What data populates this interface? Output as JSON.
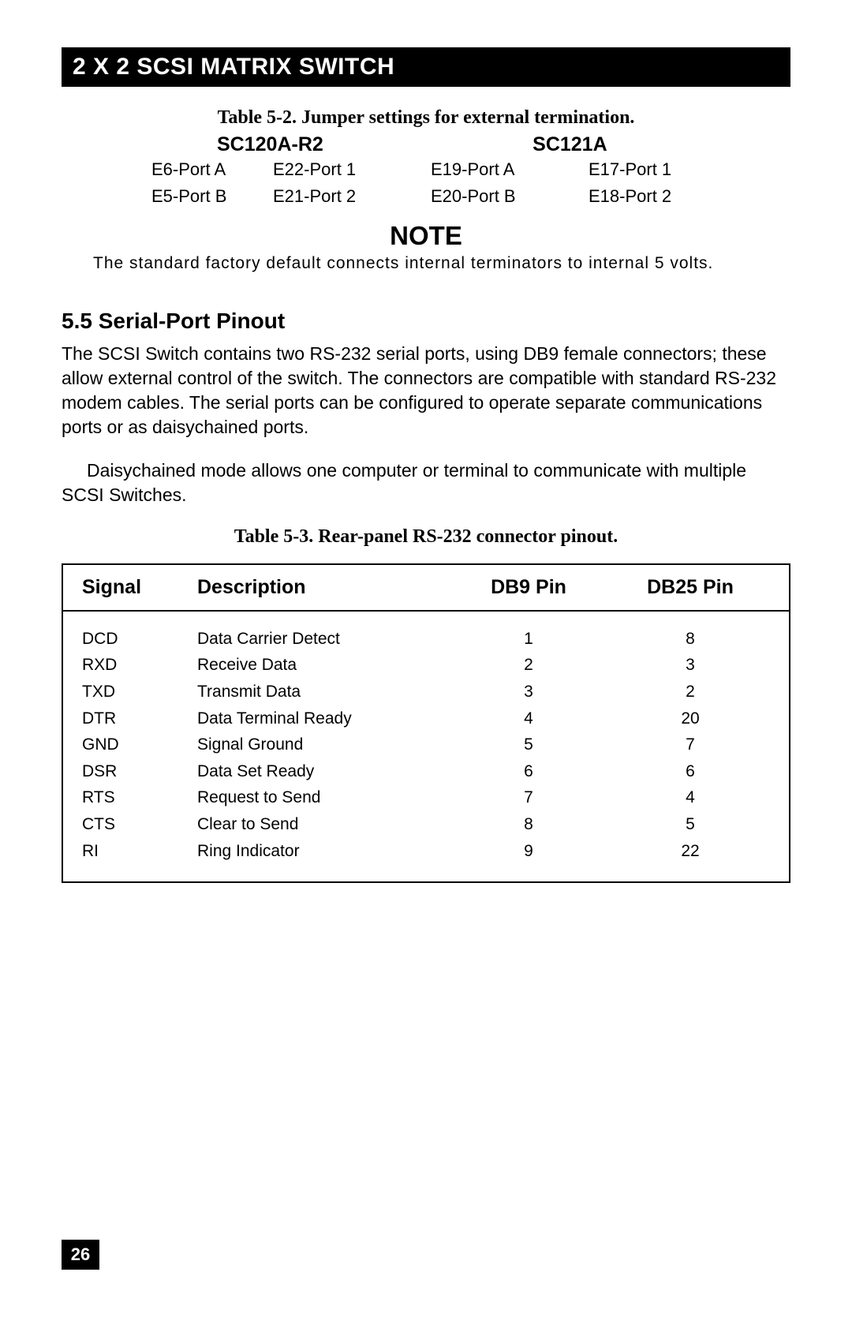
{
  "header": {
    "title": "2 X 2 SCSI MATRIX SWITCH"
  },
  "jumper": {
    "caption": "Table 5-2. Jumper settings for external termination.",
    "left_model": "SC120A-R2",
    "right_model": "SC121A",
    "rows": [
      {
        "a": "E6-Port A",
        "b": "E22-Port 1",
        "c": "E19-Port A",
        "d": "E17-Port 1"
      },
      {
        "a": "E5-Port B",
        "b": "E21-Port 2",
        "c": "E20-Port B",
        "d": "E18-Port 2"
      }
    ]
  },
  "note": {
    "heading": "NOTE",
    "text": "The standard factory default connects internal terminators to internal 5 volts."
  },
  "section": {
    "heading": "5.5 Serial-Port Pinout",
    "para1": "The SCSI Switch contains two RS-232 serial ports, using DB9 female connectors; these allow external control of the switch. The connectors are compatible with standard RS-232 modem cables. The serial ports can be configured to operate separate communications ports or as daisychained ports.",
    "para2": "Daisychained mode allows one computer or terminal to communicate with multiple SCSI Switches."
  },
  "pinout": {
    "caption": "Table 5-3. Rear-panel RS-232 connector pinout.",
    "columns": {
      "signal": "Signal",
      "description": "Description",
      "db9": "DB9 Pin",
      "db25": "DB25 Pin"
    },
    "rows": [
      {
        "signal": "DCD",
        "description": "Data Carrier Detect",
        "db9": "1",
        "db25": "8"
      },
      {
        "signal": "RXD",
        "description": "Receive Data",
        "db9": "2",
        "db25": "3"
      },
      {
        "signal": "TXD",
        "description": "Transmit Data",
        "db9": "3",
        "db25": "2"
      },
      {
        "signal": "DTR",
        "description": "Data Terminal Ready",
        "db9": "4",
        "db25": "20"
      },
      {
        "signal": "GND",
        "description": "Signal Ground",
        "db9": "5",
        "db25": "7"
      },
      {
        "signal": "DSR",
        "description": "Data Set Ready",
        "db9": "6",
        "db25": "6"
      },
      {
        "signal": "RTS",
        "description": "Request to Send",
        "db9": "7",
        "db25": "4"
      },
      {
        "signal": "CTS",
        "description": "Clear to Send",
        "db9": "8",
        "db25": "5"
      },
      {
        "signal": "RI",
        "description": "Ring Indicator",
        "db9": "9",
        "db25": "22"
      }
    ]
  },
  "page_number": "26",
  "style": {
    "header_bg": "#000000",
    "header_fg": "#ffffff",
    "body_fg": "#000000",
    "table_border": "#000000",
    "heading_font": "Arial Narrow",
    "body_font": "Arial",
    "caption_font": "Times New Roman"
  }
}
